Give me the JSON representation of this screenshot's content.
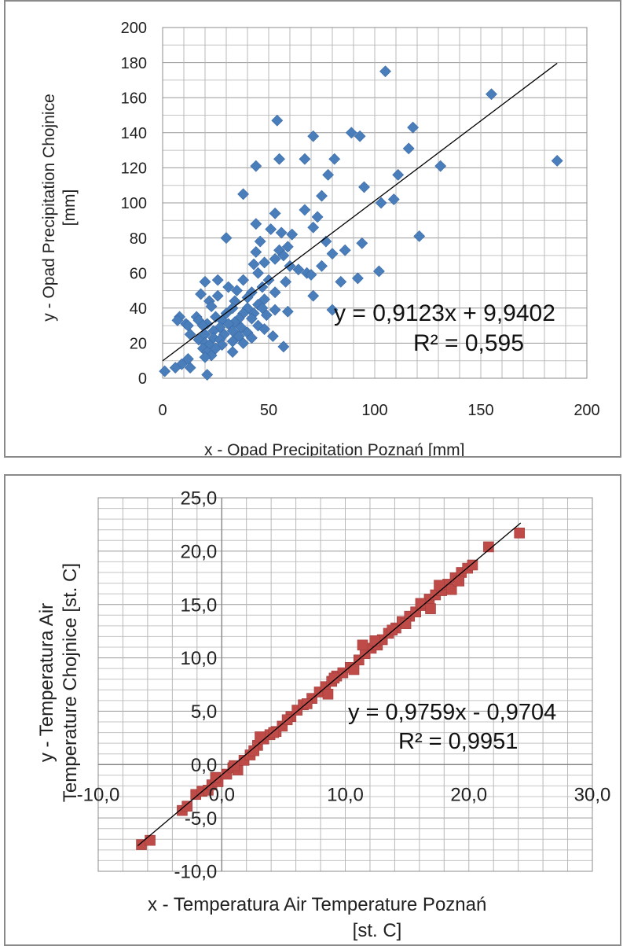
{
  "chart_data": [
    {
      "type": "scatter",
      "xlabel": "x - Opad Precipitation Poznań [mm]",
      "ylabel_lines": [
        "y - Opad Precipitation Chojnice",
        "[mm]"
      ],
      "xlim": [
        0,
        200
      ],
      "ylim": [
        0,
        200
      ],
      "x_ticks": [
        "0",
        "50",
        "100",
        "150",
        "200"
      ],
      "y_ticks": [
        "0",
        "20",
        "40",
        "60",
        "80",
        "100",
        "120",
        "140",
        "160",
        "180",
        "200"
      ],
      "grid": true,
      "marker": "diamond",
      "color": "#4a7ebb",
      "trendline": {
        "slope": 0.9123,
        "intercept": 9.9402,
        "x_range": [
          0,
          186
        ],
        "color": "#000000"
      },
      "equation": "y = 0,9123x + 9,9402",
      "r_squared": "R² = 0,595",
      "points": [
        [
          105,
          175
        ],
        [
          155,
          162
        ],
        [
          54,
          147
        ],
        [
          118,
          143
        ],
        [
          89,
          140
        ],
        [
          71,
          138
        ],
        [
          93,
          138
        ],
        [
          116,
          131
        ],
        [
          186,
          124
        ],
        [
          55,
          125
        ],
        [
          67,
          125
        ],
        [
          81,
          125
        ],
        [
          131,
          121
        ],
        [
          44,
          121
        ],
        [
          111,
          116
        ],
        [
          78,
          116
        ],
        [
          95,
          109
        ],
        [
          38,
          105
        ],
        [
          75,
          104
        ],
        [
          109,
          102
        ],
        [
          103,
          100
        ],
        [
          67,
          96
        ],
        [
          53,
          94
        ],
        [
          73,
          92
        ],
        [
          44,
          88
        ],
        [
          71,
          86
        ],
        [
          51,
          85
        ],
        [
          56,
          83
        ],
        [
          61,
          82
        ],
        [
          121,
          81
        ],
        [
          30,
          80
        ],
        [
          46,
          78
        ],
        [
          77,
          78
        ],
        [
          94,
          77
        ],
        [
          59,
          75
        ],
        [
          55,
          73
        ],
        [
          86,
          73
        ],
        [
          44,
          72
        ],
        [
          80,
          71
        ],
        [
          57,
          70
        ],
        [
          53,
          68
        ],
        [
          48,
          66
        ],
        [
          43,
          65
        ],
        [
          60,
          64
        ],
        [
          75,
          64
        ],
        [
          64,
          62
        ],
        [
          102,
          61
        ],
        [
          45,
          60
        ],
        [
          68,
          60
        ],
        [
          70,
          59
        ],
        [
          92,
          57
        ],
        [
          26,
          56
        ],
        [
          38,
          56
        ],
        [
          50,
          56
        ],
        [
          20,
          55
        ],
        [
          58,
          55
        ],
        [
          84,
          55
        ],
        [
          31,
          52
        ],
        [
          47,
          52
        ],
        [
          35,
          50
        ],
        [
          42,
          49
        ],
        [
          53,
          49
        ],
        [
          18,
          48
        ],
        [
          26,
          47
        ],
        [
          71,
          47
        ],
        [
          40,
          46
        ],
        [
          48,
          45
        ],
        [
          22,
          44
        ],
        [
          34,
          44
        ],
        [
          45,
          42
        ],
        [
          23,
          41
        ],
        [
          33,
          40
        ],
        [
          40,
          40
        ],
        [
          47,
          40
        ],
        [
          53,
          39
        ],
        [
          80,
          39
        ],
        [
          59,
          38
        ],
        [
          30,
          37
        ],
        [
          38,
          37
        ],
        [
          43,
          37
        ],
        [
          49,
          36
        ],
        [
          8,
          35
        ],
        [
          16,
          35
        ],
        [
          25,
          35
        ],
        [
          36,
          34
        ],
        [
          42,
          34
        ],
        [
          7,
          33
        ],
        [
          17,
          33
        ],
        [
          28,
          33
        ],
        [
          34,
          32
        ],
        [
          11,
          31
        ],
        [
          21,
          31
        ],
        [
          31,
          31
        ],
        [
          45,
          30
        ],
        [
          12,
          30
        ],
        [
          19,
          30
        ],
        [
          27,
          29
        ],
        [
          37,
          29
        ],
        [
          48,
          28
        ],
        [
          24,
          27
        ],
        [
          33,
          27
        ],
        [
          40,
          26
        ],
        [
          13,
          25
        ],
        [
          20,
          25
        ],
        [
          29,
          25
        ],
        [
          36,
          24
        ],
        [
          52,
          24
        ],
        [
          42,
          23
        ],
        [
          24,
          23
        ],
        [
          17,
          22
        ],
        [
          27,
          22
        ],
        [
          33,
          21
        ],
        [
          20,
          20
        ],
        [
          38,
          20
        ],
        [
          22,
          19
        ],
        [
          28,
          19
        ],
        [
          57,
          18
        ],
        [
          19,
          17
        ],
        [
          25,
          17
        ],
        [
          21,
          15
        ],
        [
          33,
          15
        ],
        [
          23,
          13
        ],
        [
          20,
          12
        ],
        [
          12,
          11
        ],
        [
          9,
          8
        ],
        [
          6,
          6
        ],
        [
          13,
          6
        ],
        [
          1,
          4
        ],
        [
          21,
          2
        ]
      ]
    },
    {
      "type": "scatter",
      "xlabel_lines": [
        "x - Temperatura Air Temperature Poznań",
        "[st. C]"
      ],
      "ylabel_lines": [
        "y - Temperatura Air",
        "Temperature Chojnice [st. C]"
      ],
      "xlim": [
        -10,
        30
      ],
      "ylim": [
        -10,
        25
      ],
      "x_ticks": [
        "-10,0",
        "0,0",
        "10,0",
        "20,0",
        "30,0"
      ],
      "y_ticks": [
        "-10,0",
        "-5,0",
        "0,0",
        "5,0",
        "10,0",
        "15,0",
        "20,0",
        "25,0"
      ],
      "grid": true,
      "marker": "square",
      "color": "#be4b48",
      "trendline": {
        "slope": 0.9759,
        "intercept": -0.9704,
        "x_range": [
          -6.8,
          24.2
        ],
        "color": "#000000"
      },
      "equation": "y = 0,9759x - 0,9704",
      "r_squared": "R² = 0,9951",
      "points": [
        [
          -6.5,
          -7.5
        ],
        [
          -5.8,
          -7.1
        ],
        [
          -3.2,
          -4.3
        ],
        [
          -2.8,
          -3.9
        ],
        [
          -2.1,
          -2.8
        ],
        [
          -1.6,
          -2.5
        ],
        [
          -1.1,
          -2.4
        ],
        [
          -0.8,
          -1.9
        ],
        [
          -0.3,
          -1.6
        ],
        [
          0.4,
          -0.9
        ],
        [
          0.9,
          -0.3
        ],
        [
          1.3,
          -0.5
        ],
        [
          1.8,
          0.4
        ],
        [
          2.3,
          0.9
        ],
        [
          2.9,
          1.8
        ],
        [
          3.4,
          2.4
        ],
        [
          3.9,
          2.8
        ],
        [
          4.4,
          3.1
        ],
        [
          4.9,
          3.6
        ],
        [
          5.6,
          4.5
        ],
        [
          6.1,
          5.1
        ],
        [
          6.6,
          5.6
        ],
        [
          7.3,
          6.2
        ],
        [
          7.9,
          6.8
        ],
        [
          8.4,
          7.3
        ],
        [
          8.9,
          7.8
        ],
        [
          9.3,
          8.3
        ],
        [
          9.8,
          8.6
        ],
        [
          10.4,
          9.1
        ],
        [
          11.1,
          9.8
        ],
        [
          11.6,
          10.4
        ],
        [
          12.1,
          10.9
        ],
        [
          12.6,
          11.2
        ],
        [
          13.0,
          11.7
        ],
        [
          13.5,
          12.3
        ],
        [
          14.1,
          12.8
        ],
        [
          14.6,
          13.4
        ],
        [
          15.2,
          13.9
        ],
        [
          15.7,
          14.3
        ],
        [
          16.2,
          14.9
        ],
        [
          16.8,
          15.5
        ],
        [
          17.3,
          15.9
        ],
        [
          17.8,
          16.3
        ],
        [
          18.3,
          16.9
        ],
        [
          18.9,
          17.5
        ],
        [
          19.4,
          18.0
        ],
        [
          19.9,
          18.4
        ],
        [
          20.3,
          18.7
        ],
        [
          21.6,
          20.4
        ],
        [
          24.1,
          21.7
        ],
        [
          11.4,
          11.2
        ],
        [
          12.4,
          11.6
        ],
        [
          13.8,
          12.6
        ],
        [
          14.9,
          13.2
        ],
        [
          16.1,
          15.1
        ],
        [
          16.9,
          14.6
        ],
        [
          17.6,
          16.8
        ],
        [
          18.6,
          16.4
        ],
        [
          19.2,
          17.2
        ],
        [
          8.6,
          6.6
        ],
        [
          9.1,
          8.1
        ],
        [
          10.7,
          8.9
        ],
        [
          6.9,
          5.7
        ],
        [
          5.3,
          4.2
        ],
        [
          4.2,
          3.0
        ],
        [
          3.1,
          2.6
        ],
        [
          2.6,
          1.3
        ],
        [
          1.0,
          -0.1
        ],
        [
          -0.5,
          -1.2
        ]
      ]
    }
  ]
}
